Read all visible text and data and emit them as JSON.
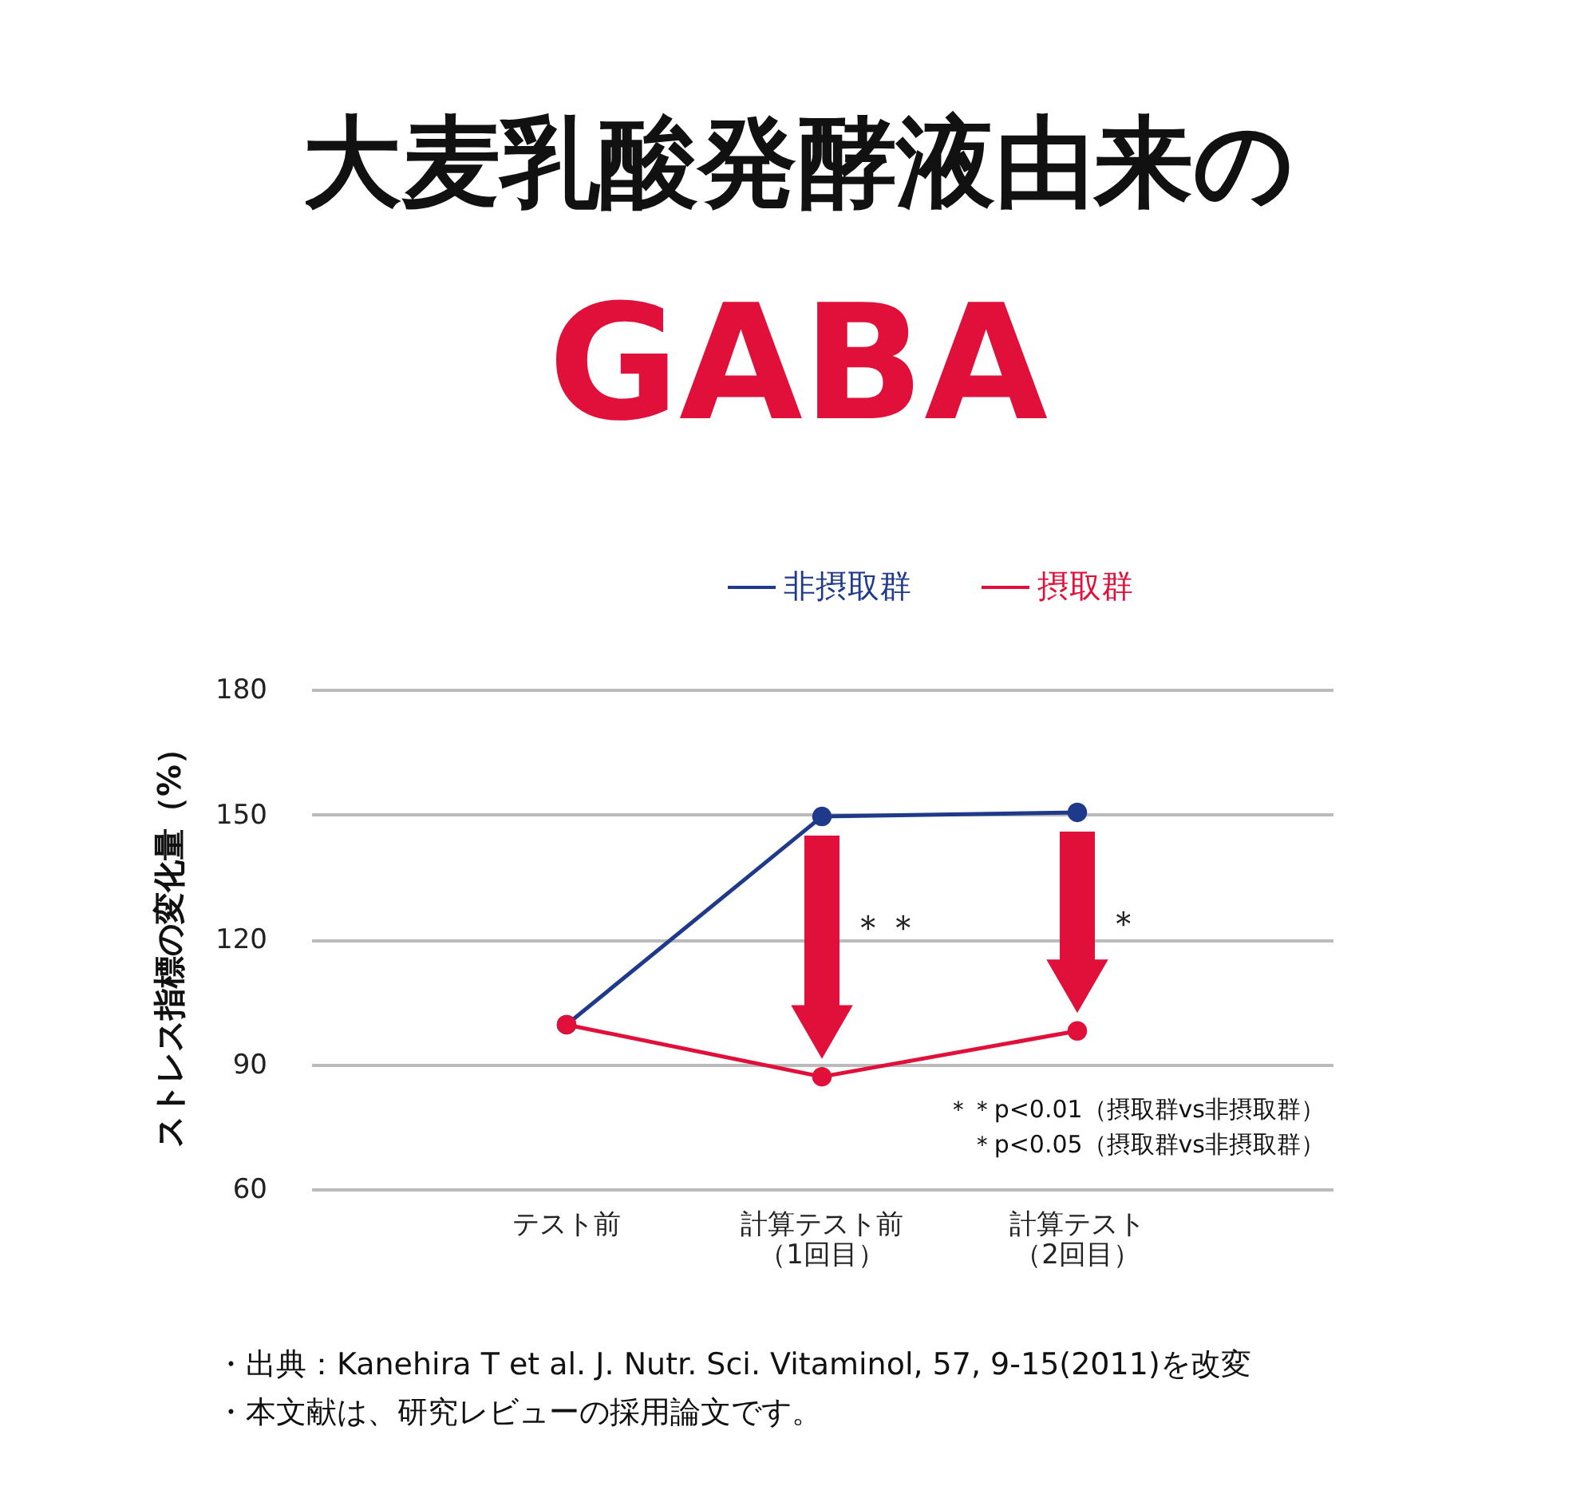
{
  "chart_data": {
    "type": "line",
    "title": "大麦乳酸発酵液由来の",
    "subtitle": "GABA",
    "ylabel": "ストレス指標の変化量（%）",
    "categories": [
      "テスト前",
      "計算テスト前（1回目）",
      "計算テスト（2回目）"
    ],
    "series": [
      {
        "name": "非摂取群",
        "color": "#1f3a8a",
        "values": [
          99.5,
          149.5,
          150.5
        ]
      },
      {
        "name": "摂取群",
        "color": "#e0103a",
        "values": [
          99.5,
          87,
          98
        ]
      }
    ],
    "ylim": [
      60,
      180
    ],
    "yticks": [
      60,
      90,
      120,
      150,
      180
    ],
    "grid": "y",
    "legend": "top right",
    "marker": "circle",
    "annotations": [
      "＊＊",
      "＊",
      "＊＊p<0.01（摂取群vs非摂取群）",
      "＊p<0.05（摂取群vs非摂取群）",
      "・出典：Kanehira T et al.  J. Nutr. Sci. Vitaminol, 57, 9-15(2011)を改変",
      "・本文献は、研究レビューの採用論文です。"
    ]
  }
}
